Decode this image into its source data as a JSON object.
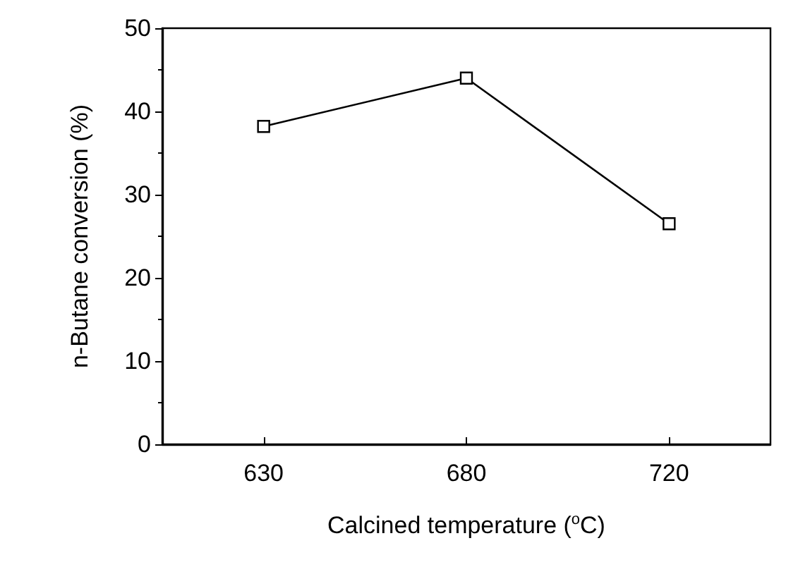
{
  "chart_data": {
    "type": "line",
    "xlabel": "Calcined temperature ($^{o}$C)",
    "ylabel": "n-Butane conversion (%)",
    "categories": [
      "630",
      "680",
      "720"
    ],
    "values": [
      38.2,
      44.0,
      26.5
    ],
    "color": "#000000",
    "marker": "square",
    "line_style": "solid",
    "ylim": [
      0,
      50
    ],
    "yticks": [
      0,
      10,
      20,
      30,
      40,
      50
    ]
  }
}
